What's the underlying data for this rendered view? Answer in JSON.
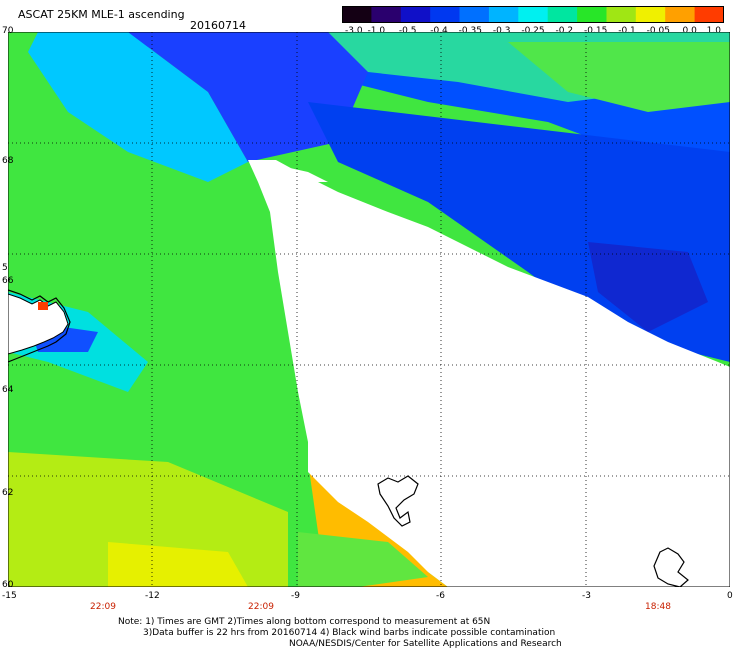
{
  "header": {
    "title": "ASCAT 25KM MLE-1 ascending",
    "date": "20160714"
  },
  "colorbar": {
    "labels": [
      "-3.0",
      "-1.0",
      "-0.5",
      "-0.4",
      "-0.35",
      "-0.3",
      "-0.25",
      "-0.2",
      "-0.15",
      "-0.1",
      "-0.05",
      "0.0",
      "1.0"
    ],
    "colors": [
      "#140014",
      "#2a006e",
      "#1010c8",
      "#0038f0",
      "#0070ff",
      "#00b4ff",
      "#00f0f0",
      "#00e6a0",
      "#28e628",
      "#a0e614",
      "#f0f000",
      "#ffa000",
      "#ff3c00"
    ]
  },
  "map": {
    "lat_labels": [
      "70",
      "68",
      "66",
      "64",
      "62",
      "60"
    ],
    "lon_labels": [
      "-15",
      "-12",
      "-9",
      "-6",
      "-3",
      "0"
    ],
    "extra_left_label": "5",
    "lat_range": [
      60,
      70
    ],
    "lon_range": [
      -15,
      0
    ],
    "time_labels": [
      {
        "text": "22:09",
        "lon": -13.9
      },
      {
        "text": "22:09",
        "lon": -10.9
      },
      {
        "text": "18:48",
        "lon": -1.4
      }
    ]
  },
  "notes": {
    "line1": "Note: 1) Times are GMT 2)Times along bottom correspond to measurement at 65N",
    "line2": "3)Data buffer is 22 hrs from 20160714 4) Black wind barbs indicate possible contamination",
    "line3": "NOAA/NESDIS/Center for Satellite Applications and Research"
  }
}
